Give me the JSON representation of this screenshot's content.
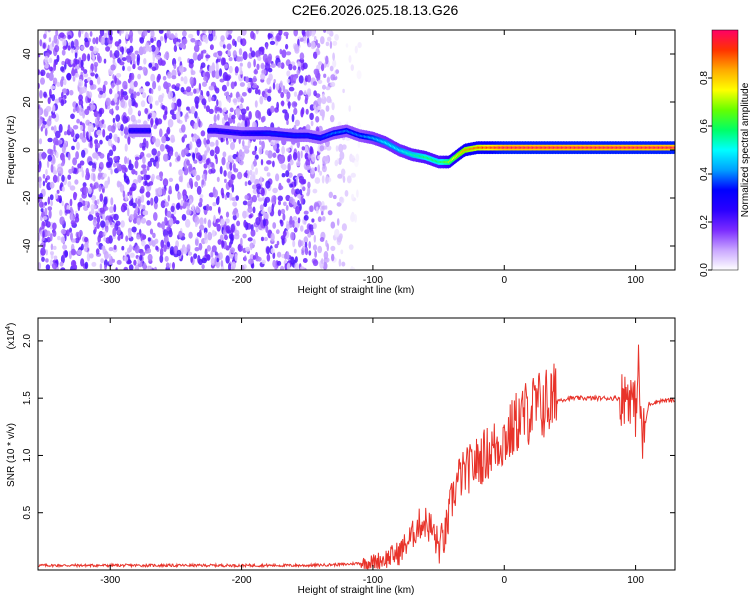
{
  "title": "C2E6.2026.025.18.13.G26",
  "chart_data": [
    {
      "type": "heatmap",
      "xlabel": "Height of straight line (km)",
      "ylabel": "Frequency (Hz)",
      "xlim": [
        -355,
        130
      ],
      "ylim": [
        -50,
        50
      ],
      "xticks": [
        -300,
        -200,
        -100,
        0,
        100
      ],
      "yticks": [
        -40,
        -20,
        0,
        20,
        40
      ],
      "colorbar": {
        "label": "Normalized spectral amplitude",
        "range": [
          0,
          1
        ],
        "ticks": [
          "0.0",
          "0.2",
          "0.4",
          "0.6",
          "0.8"
        ],
        "colors": [
          "#ffffff",
          "#c9a6ff",
          "#7a2bff",
          "#2a00ff",
          "#0000ff",
          "#00a0ff",
          "#00ffff",
          "#00ff66",
          "#66ff00",
          "#ffff00",
          "#ffaa00",
          "#ff3300",
          "#ff0066"
        ]
      },
      "ridge": {
        "x": [
          -285,
          -275,
          -220,
          -200,
          -180,
          -160,
          -150,
          -140,
          -130,
          -120,
          -110,
          -100,
          -90,
          -80,
          -70,
          -60,
          -50,
          -42,
          -35,
          -30,
          -20,
          -10,
          0,
          20,
          40,
          60,
          80,
          100,
          130
        ],
        "y": [
          8,
          8,
          8,
          7,
          7,
          6,
          6,
          5,
          7,
          8,
          6,
          5,
          3,
          0,
          -2,
          -3,
          -5,
          -5,
          -2,
          0,
          1,
          1,
          1,
          1,
          1,
          1,
          1,
          1,
          1
        ],
        "amplitude": [
          0.3,
          0.3,
          0.3,
          0.3,
          0.35,
          0.35,
          0.35,
          0.35,
          0.4,
          0.4,
          0.4,
          0.45,
          0.5,
          0.5,
          0.55,
          0.6,
          0.6,
          0.7,
          0.8,
          0.85,
          0.9,
          0.95,
          1.0,
          1.0,
          1.0,
          1.0,
          1.0,
          1.0,
          1.0
        ]
      },
      "noise_region": {
        "x_from": -355,
        "x_to": -110,
        "amplitude": 0.2
      }
    },
    {
      "type": "line",
      "xlabel": "Height of straight line (km)",
      "ylabel": "SNR (10 * v/v)",
      "scale_label": "(x10",
      "scale_exp": "4",
      "multiplier": 10000,
      "xlim": [
        -355,
        130
      ],
      "ylim": [
        0,
        2.2
      ],
      "xticks": [
        -300,
        -200,
        -100,
        0,
        100
      ],
      "yticks": [
        "0.5",
        "1.0",
        "1.5",
        "2.0"
      ],
      "series": [
        {
          "color": "#e8332a",
          "x": [
            -355,
            -300,
            -250,
            -200,
            -150,
            -120,
            -100,
            -90,
            -80,
            -70,
            -65,
            -60,
            -55,
            -50,
            -45,
            -40,
            -35,
            -30,
            -25,
            -20,
            -15,
            -10,
            -5,
            0,
            5,
            10,
            20,
            30,
            40,
            50,
            60,
            70,
            80,
            90,
            95,
            100,
            102,
            105,
            110,
            120,
            130
          ],
          "y": [
            0.04,
            0.04,
            0.04,
            0.04,
            0.04,
            0.05,
            0.07,
            0.1,
            0.15,
            0.3,
            0.4,
            0.42,
            0.35,
            0.2,
            0.3,
            0.6,
            0.8,
            0.85,
            0.9,
            0.95,
            1.0,
            1.05,
            1.1,
            1.15,
            1.2,
            1.3,
            1.4,
            1.45,
            1.48,
            1.5,
            1.5,
            1.5,
            1.5,
            1.5,
            1.55,
            1.4,
            1.8,
            1.1,
            1.45,
            1.48,
            1.48
          ]
        }
      ]
    }
  ]
}
